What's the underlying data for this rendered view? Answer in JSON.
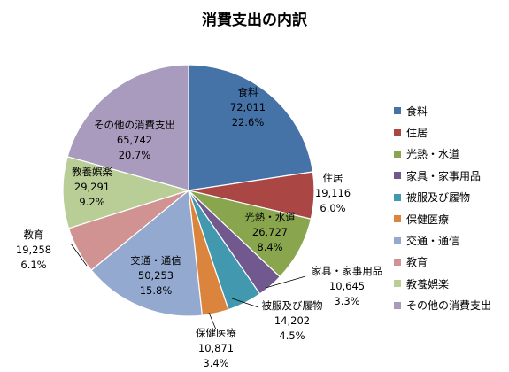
{
  "chart_data": {
    "type": "pie",
    "title": "消費支出の内訳",
    "legend_position": "right",
    "slices": [
      {
        "name": "食料",
        "value": 72011,
        "percent": "22.6%",
        "color": "#4572A7"
      },
      {
        "name": "住居",
        "value": 19116,
        "percent": "6.0%",
        "color": "#AA4643"
      },
      {
        "name": "光熱・水道",
        "value": 26727,
        "percent": "8.4%",
        "color": "#89A54E"
      },
      {
        "name": "家具・家事用品",
        "value": 10645,
        "percent": "3.3%",
        "color": "#71588F"
      },
      {
        "name": "被服及び履物",
        "value": 14202,
        "percent": "4.5%",
        "color": "#4198AF"
      },
      {
        "name": "保健医療",
        "value": 10871,
        "percent": "3.4%",
        "color": "#DB843D"
      },
      {
        "name": "交通・通信",
        "value": 50253,
        "percent": "15.8%",
        "color": "#93A9CF"
      },
      {
        "name": "教育",
        "value": 19258,
        "percent": "6.1%",
        "color": "#D19392"
      },
      {
        "name": "教養娯楽",
        "value": 29291,
        "percent": "9.2%",
        "color": "#B9CD96"
      },
      {
        "name": "その他の消費支出",
        "value": 65742,
        "percent": "20.7%",
        "color": "#A99BBD"
      }
    ],
    "value_labels": [
      "72,011",
      "19,116",
      "26,727",
      "10,645",
      "14,202",
      "10,871",
      "50,253",
      "19,258",
      "29,291",
      "65,742"
    ]
  }
}
